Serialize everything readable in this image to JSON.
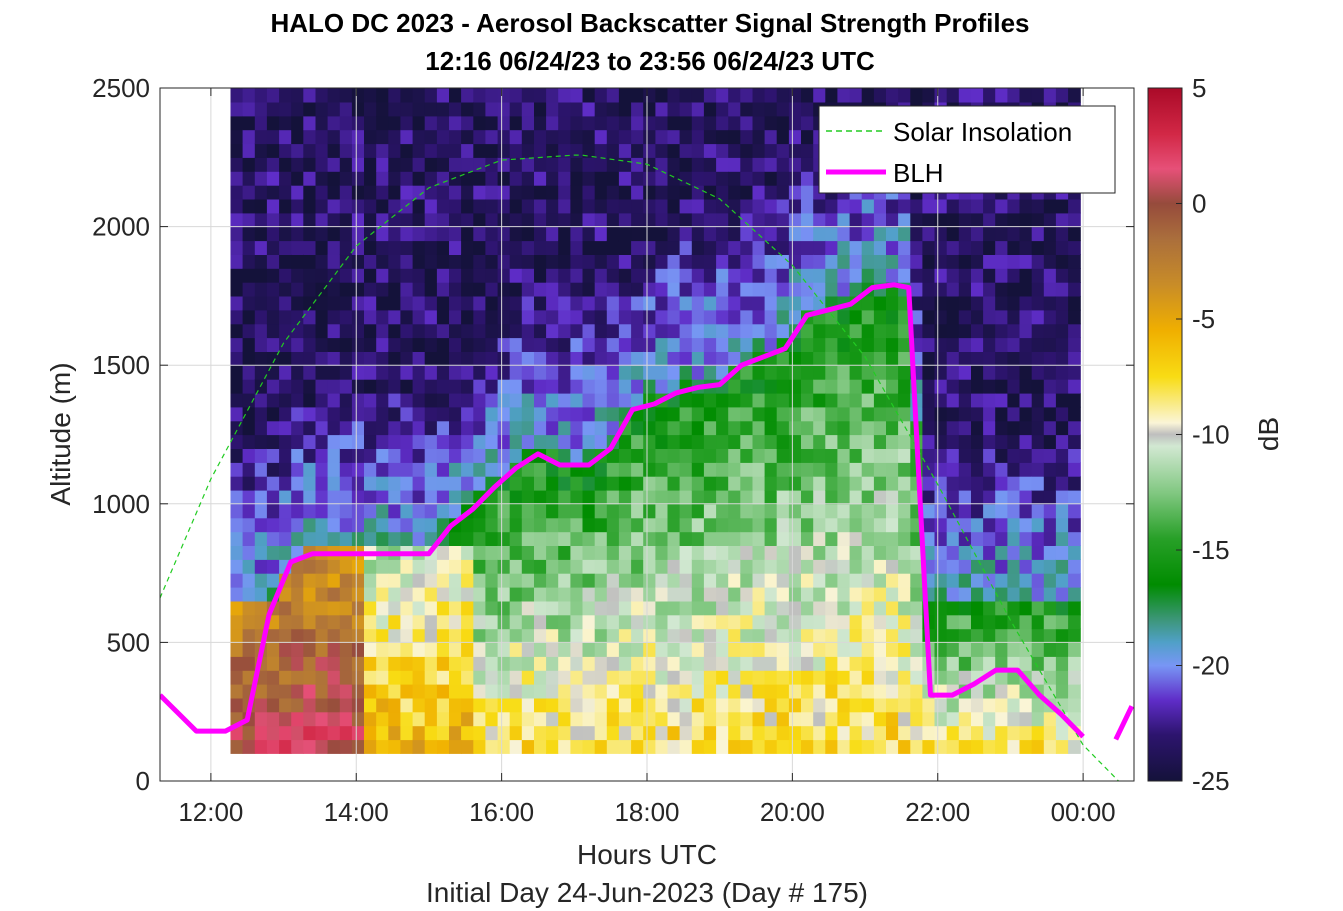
{
  "chart_data": {
    "type": "heatmap",
    "title": "HALO DC 2023 - Aerosol Backscatter Signal Strength Profiles",
    "subtitle": "12:16 06/24/23 to 23:56 06/24/23  UTC",
    "xlabel": "Hours UTC",
    "ylabel": "Altitude (m)",
    "footer": "Initial Day 24-Jun-2023 (Day # 175)",
    "x_tick_labels": [
      "12:00",
      "14:00",
      "16:00",
      "18:00",
      "20:00",
      "22:00",
      "00:00"
    ],
    "x_tick_hours": [
      12,
      14,
      16,
      18,
      20,
      22,
      24
    ],
    "y_ticks": [
      0,
      500,
      1000,
      1500,
      2000,
      2500
    ],
    "xlim_hours": [
      11.3,
      24.7
    ],
    "ylim": [
      0,
      2500
    ],
    "grid": true,
    "colorbar": {
      "label": "dB",
      "range": [
        -25,
        5
      ],
      "ticks": [
        5,
        0,
        -5,
        -10,
        -15,
        -20,
        -25
      ]
    },
    "heatmap": {
      "x_start_hour": 12.27,
      "column_width_hours": 0.167,
      "columns": 70,
      "y_start_m": 100,
      "row_height_m": 50,
      "rows": 48,
      "generated": "approximate reproduction of signal field from visual inspection"
    },
    "series": [
      {
        "name": "Solar Insolation",
        "style": "dashed",
        "color": "#22cc22",
        "x": [
          11.3,
          12.0,
          13.0,
          14.0,
          15.0,
          16.0,
          17.0,
          17.1,
          18.0,
          19.0,
          20.0,
          21.0,
          22.0,
          23.0,
          24.0,
          24.6
        ],
        "y": [
          660,
          1090,
          1580,
          1930,
          2140,
          2240,
          2258,
          2258,
          2225,
          2100,
          1860,
          1530,
          1070,
          580,
          130,
          -30
        ]
      },
      {
        "name": "BLH",
        "style": "solid",
        "color": "#ff00ff",
        "x": [
          11.3,
          11.8,
          12.2,
          12.5,
          12.8,
          13.1,
          13.4,
          13.7,
          14.0,
          14.5,
          15.0,
          15.3,
          15.6,
          15.9,
          16.2,
          16.5,
          16.8,
          17.2,
          17.5,
          17.8,
          18.1,
          18.4,
          18.7,
          19.0,
          19.3,
          19.6,
          19.9,
          20.2,
          20.5,
          20.8,
          21.1,
          21.4,
          21.6,
          21.9,
          22.2,
          22.5,
          22.8,
          23.1,
          23.4,
          23.7,
          24.0
        ],
        "y": [
          310,
          180,
          180,
          220,
          600,
          790,
          820,
          820,
          820,
          820,
          820,
          920,
          980,
          1060,
          1130,
          1180,
          1140,
          1140,
          1200,
          1340,
          1360,
          1400,
          1420,
          1430,
          1500,
          1530,
          1560,
          1680,
          1700,
          1720,
          1780,
          1790,
          1780,
          310,
          310,
          350,
          400,
          400,
          310,
          240,
          160
        ]
      },
      {
        "name": "",
        "style": "solid",
        "color": "#ff00ff",
        "x": [
          24.45,
          24.67
        ],
        "y": [
          150,
          270
        ]
      }
    ],
    "legend": {
      "placement": "top-right",
      "entries": [
        "Solar Insolation",
        "BLH"
      ]
    }
  }
}
